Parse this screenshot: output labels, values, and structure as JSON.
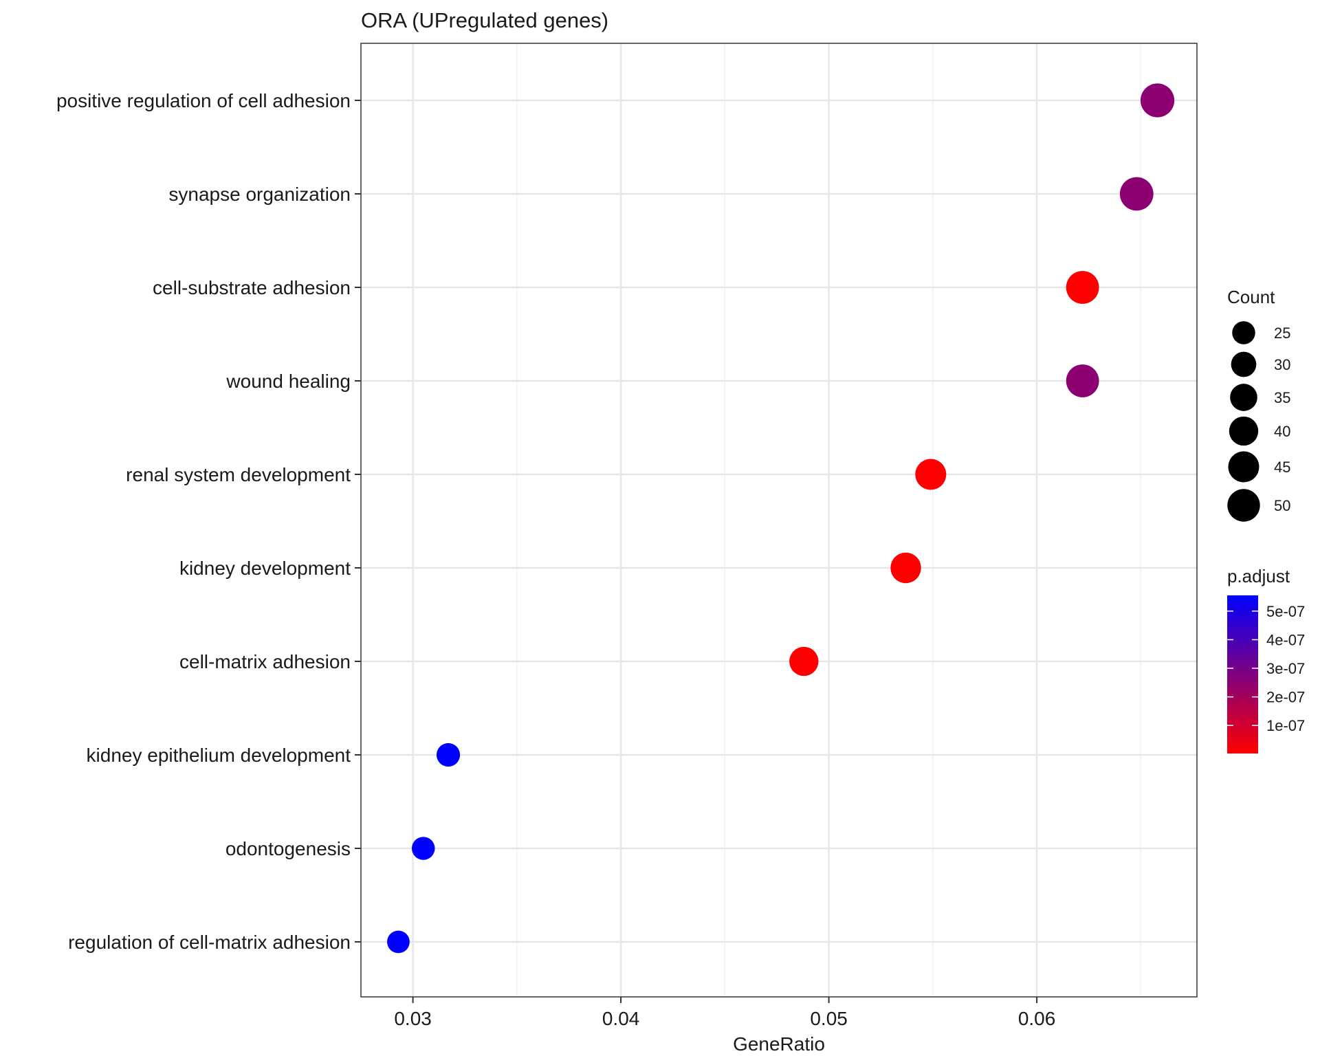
{
  "chart_data": {
    "type": "scatter",
    "title": "ORA (UPregulated genes)",
    "xlabel": "GeneRatio",
    "ylabel": "",
    "xlim": [
      0.0275,
      0.0677
    ],
    "x_ticks": [
      0.03,
      0.04,
      0.05,
      0.06
    ],
    "x_tick_labels": [
      "0.03",
      "0.04",
      "0.05",
      "0.06"
    ],
    "grid": true,
    "categories": [
      "positive regulation of cell adhesion",
      "synapse organization",
      "cell-substrate adhesion",
      "wound healing",
      "renal system development",
      "kidney development",
      "cell-matrix adhesion",
      "kidney epithelium development",
      "odontogenesis",
      "regulation of cell-matrix adhesion"
    ],
    "points": [
      {
        "term": "positive regulation of cell adhesion",
        "gene_ratio": 0.0658,
        "count": 54,
        "p_adjust": 2.5e-07
      },
      {
        "term": "synapse organization",
        "gene_ratio": 0.0648,
        "count": 53,
        "p_adjust": 2.5e-07
      },
      {
        "term": "cell-substrate adhesion",
        "gene_ratio": 0.0622,
        "count": 51,
        "p_adjust": 2e-09
      },
      {
        "term": "wound healing",
        "gene_ratio": 0.0622,
        "count": 51,
        "p_adjust": 2.5e-07
      },
      {
        "term": "renal system development",
        "gene_ratio": 0.0549,
        "count": 45,
        "p_adjust": 2e-09
      },
      {
        "term": "kidney development",
        "gene_ratio": 0.0537,
        "count": 44,
        "p_adjust": 2e-09
      },
      {
        "term": "cell-matrix adhesion",
        "gene_ratio": 0.0488,
        "count": 40,
        "p_adjust": 2e-09
      },
      {
        "term": "kidney epithelium development",
        "gene_ratio": 0.0317,
        "count": 26,
        "p_adjust": 5.55e-07
      },
      {
        "term": "odontogenesis",
        "gene_ratio": 0.0305,
        "count": 25,
        "p_adjust": 5.55e-07
      },
      {
        "term": "regulation of cell-matrix adhesion",
        "gene_ratio": 0.0293,
        "count": 24,
        "p_adjust": 5.55e-07
      }
    ],
    "size_legend": {
      "title": "Count",
      "values": [
        25,
        30,
        35,
        40,
        45,
        50
      ],
      "labels": [
        "25",
        "30",
        "35",
        "40",
        "45",
        "50"
      ]
    },
    "color_legend": {
      "title": "p.adjust",
      "low": 2e-09,
      "high": 5.55e-07,
      "low_color": "#ff0000",
      "high_color": "#0000ff",
      "ticks": [
        5e-07,
        4e-07,
        3e-07,
        2e-07,
        1e-07
      ],
      "tick_labels": [
        "5e-07",
        "4e-07",
        "3e-07",
        "2e-07",
        "1e-07"
      ]
    },
    "legend_placement": "right"
  }
}
